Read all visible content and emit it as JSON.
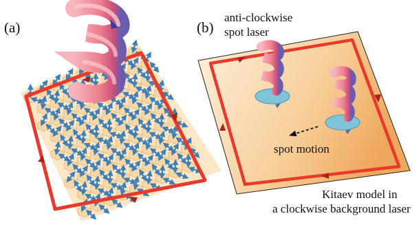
{
  "panels": {
    "a": {
      "label": "(a)"
    },
    "b": {
      "label": "(b)",
      "spot_laser_line1": "anti-clockwise",
      "spot_laser_line2": "spot laser",
      "spot_motion": "spot motion",
      "model_line1": "Kitaev model in",
      "model_line2": "a clockwise background laser"
    }
  },
  "colors": {
    "loop_red": "#e8392b",
    "arrow_dark_red": "#a8231a",
    "spin_blue": "#3f7fb8",
    "hex_fill": "#f6d8a8",
    "helix_pink": "#f08a95",
    "spot_ellipse": "#7fc4d8",
    "background_gradient_light": "#fdecd8",
    "background_gradient_dark": "#f2b070"
  },
  "icons": [
    "helix-laser-icon",
    "spin-arrow-icon",
    "loop-arrowhead-icon",
    "dashed-motion-arrow-icon"
  ]
}
